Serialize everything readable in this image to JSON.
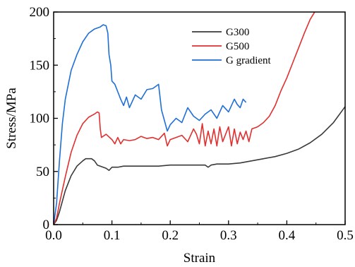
{
  "chart_data": {
    "type": "line",
    "xlabel": "Strain",
    "ylabel": "Stress/MPa",
    "xlim": [
      0,
      0.5
    ],
    "ylim": [
      0,
      200
    ],
    "xticks": [
      "0.0",
      "0.1",
      "0.2",
      "0.3",
      "0.4",
      "0.5"
    ],
    "xtick_values": [
      0,
      0.1,
      0.2,
      0.3,
      0.4,
      0.5
    ],
    "yticks": [
      "0",
      "50",
      "100",
      "150",
      "200"
    ],
    "ytick_values": [
      0,
      50,
      100,
      150,
      200
    ],
    "grid": false,
    "legend_position": "top-right",
    "series": [
      {
        "name": "G300",
        "color": "#3a3a3a",
        "x": [
          0,
          0.005,
          0.01,
          0.015,
          0.02,
          0.03,
          0.04,
          0.05,
          0.055,
          0.06,
          0.065,
          0.07,
          0.075,
          0.08,
          0.085,
          0.09,
          0.095,
          0.1,
          0.11,
          0.12,
          0.14,
          0.16,
          0.18,
          0.2,
          0.22,
          0.24,
          0.25,
          0.26,
          0.265,
          0.27,
          0.28,
          0.3,
          0.32,
          0.34,
          0.36,
          0.38,
          0.4,
          0.42,
          0.44,
          0.46,
          0.48,
          0.5
        ],
        "y": [
          0,
          4,
          12,
          22,
          32,
          46,
          55,
          60,
          62,
          62,
          62,
          60,
          56,
          55,
          54,
          53,
          51,
          54,
          54,
          55,
          55,
          55,
          55,
          56,
          56,
          56,
          56,
          56,
          54,
          56,
          57,
          57,
          58,
          60,
          62,
          64,
          67,
          71,
          77,
          85,
          96,
          111
        ]
      },
      {
        "name": "G500",
        "color": "#e03030",
        "x": [
          0,
          0.005,
          0.01,
          0.02,
          0.03,
          0.04,
          0.05,
          0.06,
          0.07,
          0.075,
          0.078,
          0.08,
          0.082,
          0.09,
          0.1,
          0.105,
          0.11,
          0.115,
          0.12,
          0.13,
          0.14,
          0.15,
          0.16,
          0.17,
          0.18,
          0.19,
          0.195,
          0.2,
          0.21,
          0.22,
          0.23,
          0.24,
          0.245,
          0.25,
          0.255,
          0.26,
          0.265,
          0.27,
          0.275,
          0.28,
          0.285,
          0.29,
          0.295,
          0.3,
          0.305,
          0.31,
          0.315,
          0.32,
          0.325,
          0.33,
          0.335,
          0.34,
          0.35,
          0.36,
          0.37,
          0.38,
          0.39,
          0.4,
          0.41,
          0.42,
          0.43,
          0.44,
          0.45
        ],
        "y": [
          0,
          6,
          20,
          45,
          68,
          84,
          95,
          101,
          104,
          106,
          105,
          90,
          82,
          85,
          80,
          76,
          82,
          76,
          80,
          79,
          80,
          83,
          81,
          82,
          80,
          86,
          74,
          80,
          82,
          84,
          78,
          90,
          85,
          76,
          95,
          74,
          88,
          76,
          90,
          74,
          92,
          78,
          85,
          92,
          74,
          90,
          76,
          87,
          80,
          88,
          78,
          90,
          92,
          96,
          102,
          112,
          126,
          138,
          152,
          166,
          180,
          193,
          202
        ]
      },
      {
        "name": "G gradient",
        "color": "#1f6fd6",
        "x": [
          0,
          0.005,
          0.01,
          0.015,
          0.02,
          0.03,
          0.04,
          0.05,
          0.06,
          0.07,
          0.08,
          0.085,
          0.09,
          0.093,
          0.095,
          0.098,
          0.1,
          0.105,
          0.11,
          0.115,
          0.12,
          0.125,
          0.13,
          0.14,
          0.15,
          0.16,
          0.17,
          0.175,
          0.18,
          0.185,
          0.19,
          0.195,
          0.2,
          0.21,
          0.22,
          0.23,
          0.24,
          0.25,
          0.26,
          0.27,
          0.28,
          0.29,
          0.3,
          0.31,
          0.315,
          0.32,
          0.325,
          0.33
        ],
        "y": [
          0,
          20,
          60,
          95,
          118,
          145,
          160,
          172,
          180,
          184,
          186,
          188,
          187,
          180,
          160,
          150,
          135,
          132,
          125,
          118,
          112,
          120,
          110,
          122,
          118,
          127,
          128,
          130,
          132,
          108,
          98,
          88,
          94,
          100,
          96,
          110,
          102,
          98,
          104,
          108,
          100,
          112,
          106,
          118,
          113,
          110,
          118,
          115
        ]
      }
    ]
  }
}
